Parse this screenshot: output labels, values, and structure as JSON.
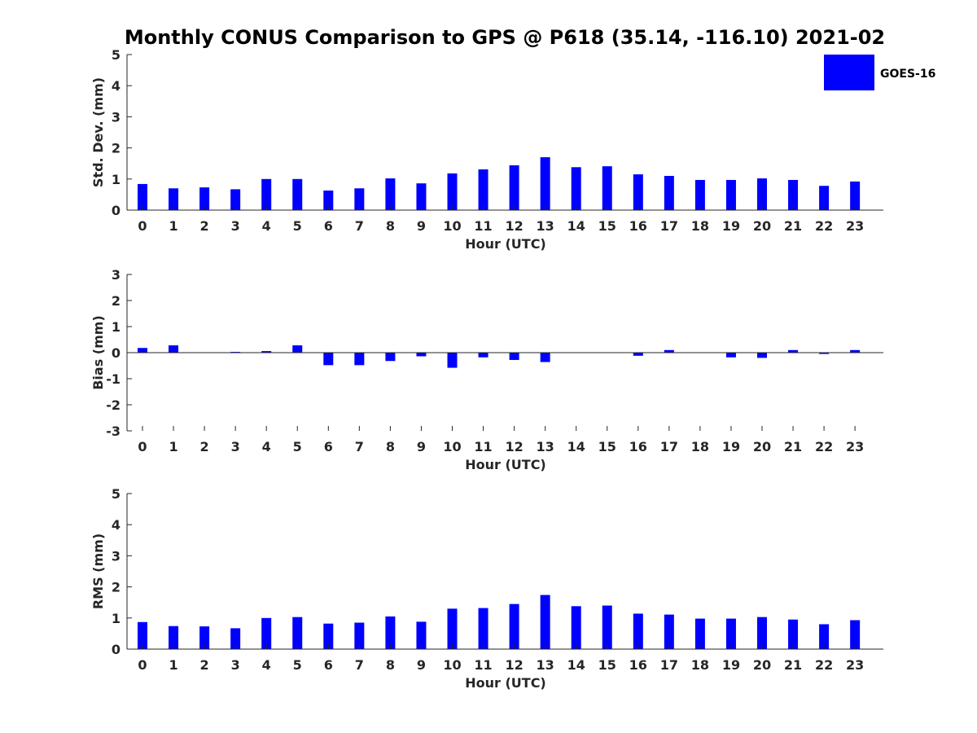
{
  "title": "Monthly CONUS Comparison to GPS @ P618 (35.14, -116.10) 2021-02",
  "bar_color": "#0000ff",
  "legend": {
    "label": "GOES-16",
    "placement": "top-right"
  },
  "chart_data": [
    {
      "type": "bar",
      "title": "Monthly CONUS Comparison to GPS @ P618 (35.14, -116.10) 2021-02",
      "xlabel": "Hour (UTC)",
      "ylabel": "Std. Dev. (mm)",
      "ylim": [
        0,
        5
      ],
      "yticks": [
        0,
        1,
        2,
        3,
        4,
        5
      ],
      "categories": [
        "0",
        "1",
        "2",
        "3",
        "4",
        "5",
        "6",
        "7",
        "8",
        "9",
        "10",
        "11",
        "12",
        "13",
        "14",
        "15",
        "16",
        "17",
        "18",
        "19",
        "20",
        "21",
        "22",
        "23"
      ],
      "series": [
        {
          "name": "GOES-16",
          "values": [
            0.84,
            0.7,
            0.73,
            0.67,
            1.0,
            1.0,
            0.63,
            0.7,
            1.02,
            0.86,
            1.18,
            1.31,
            1.44,
            1.7,
            1.38,
            1.41,
            1.15,
            1.1,
            0.97,
            0.97,
            1.02,
            0.97,
            0.78,
            0.92
          ]
        }
      ]
    },
    {
      "type": "bar",
      "xlabel": "Hour (UTC)",
      "ylabel": "Bias (mm)",
      "ylim": [
        -3,
        3
      ],
      "yticks": [
        -3,
        -2,
        -1,
        0,
        1,
        2,
        3
      ],
      "categories": [
        "0",
        "1",
        "2",
        "3",
        "4",
        "5",
        "6",
        "7",
        "8",
        "9",
        "10",
        "11",
        "12",
        "13",
        "14",
        "15",
        "16",
        "17",
        "18",
        "19",
        "20",
        "21",
        "22",
        "23"
      ],
      "series": [
        {
          "name": "GOES-16",
          "values": [
            0.18,
            0.28,
            0.0,
            0.03,
            0.06,
            0.28,
            -0.48,
            -0.48,
            -0.32,
            -0.14,
            -0.58,
            -0.18,
            -0.28,
            -0.36,
            0.0,
            0.0,
            -0.12,
            0.1,
            0.0,
            -0.18,
            -0.2,
            0.1,
            -0.05,
            0.1
          ]
        }
      ]
    },
    {
      "type": "bar",
      "xlabel": "Hour (UTC)",
      "ylabel": "RMS (mm)",
      "ylim": [
        0,
        5
      ],
      "yticks": [
        0,
        1,
        2,
        3,
        4,
        5
      ],
      "categories": [
        "0",
        "1",
        "2",
        "3",
        "4",
        "5",
        "6",
        "7",
        "8",
        "9",
        "10",
        "11",
        "12",
        "13",
        "14",
        "15",
        "16",
        "17",
        "18",
        "19",
        "20",
        "21",
        "22",
        "23"
      ],
      "series": [
        {
          "name": "GOES-16",
          "values": [
            0.87,
            0.74,
            0.73,
            0.67,
            1.0,
            1.03,
            0.82,
            0.85,
            1.05,
            0.88,
            1.3,
            1.32,
            1.45,
            1.74,
            1.38,
            1.4,
            1.14,
            1.11,
            0.98,
            0.98,
            1.03,
            0.95,
            0.8,
            0.93
          ]
        }
      ]
    }
  ]
}
